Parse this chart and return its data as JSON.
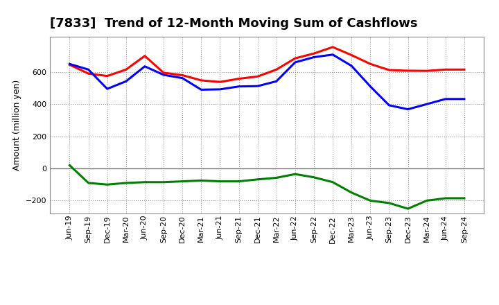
{
  "title": "[7833]  Trend of 12-Month Moving Sum of Cashflows",
  "ylabel": "Amount (million yen)",
  "background_color": "#ffffff",
  "plot_bg_color": "#ffffff",
  "grid_color": "#aaaaaa",
  "labels": [
    "Jun-19",
    "Sep-19",
    "Dec-19",
    "Mar-20",
    "Jun-20",
    "Sep-20",
    "Dec-20",
    "Mar-21",
    "Jun-21",
    "Sep-21",
    "Dec-21",
    "Mar-22",
    "Jun-22",
    "Sep-22",
    "Dec-22",
    "Mar-23",
    "Jun-23",
    "Sep-23",
    "Dec-23",
    "Mar-24",
    "Jun-24",
    "Sep-24"
  ],
  "operating_cashflow": [
    645,
    590,
    575,
    615,
    700,
    595,
    580,
    548,
    538,
    558,
    572,
    615,
    685,
    715,
    755,
    705,
    650,
    612,
    608,
    607,
    615,
    615
  ],
  "investing_cashflow": [
    20,
    -90,
    -100,
    -90,
    -85,
    -85,
    -80,
    -75,
    -80,
    -80,
    -68,
    -58,
    -35,
    -55,
    -85,
    -150,
    -200,
    -215,
    -250,
    -200,
    -185,
    -185
  ],
  "free_cashflow": [
    650,
    615,
    495,
    542,
    635,
    582,
    562,
    490,
    492,
    510,
    512,
    542,
    660,
    692,
    708,
    638,
    510,
    393,
    368,
    400,
    432,
    432
  ],
  "operating_color": "#ff0000",
  "investing_color": "#008000",
  "free_color": "#0000ff",
  "ylim": [
    -280,
    820
  ],
  "yticks": [
    -200,
    0,
    200,
    400,
    600
  ],
  "linewidth": 2.2,
  "title_fontsize": 13,
  "legend_fontsize": 9,
  "tick_fontsize": 8
}
